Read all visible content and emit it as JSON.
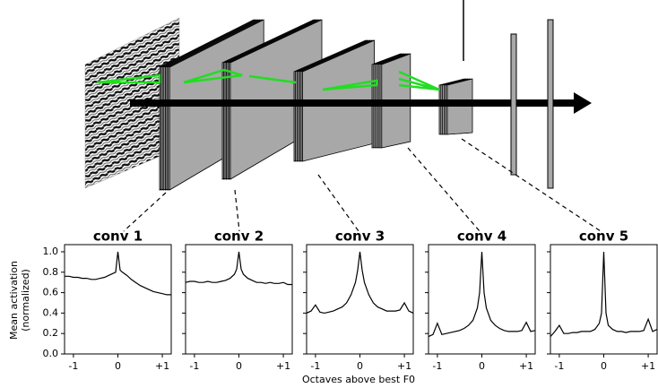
{
  "chart_data": [
    {
      "type": "line",
      "title": "conv 1",
      "x": [
        -1.2,
        -1.1,
        -1.0,
        -0.9,
        -0.8,
        -0.7,
        -0.6,
        -0.5,
        -0.4,
        -0.3,
        -0.2,
        -0.1,
        -0.05,
        0,
        0.05,
        0.1,
        0.2,
        0.3,
        0.4,
        0.5,
        0.6,
        0.7,
        0.8,
        0.9,
        1.0,
        1.1,
        1.2
      ],
      "values": [
        0.76,
        0.76,
        0.75,
        0.75,
        0.74,
        0.74,
        0.73,
        0.73,
        0.74,
        0.75,
        0.77,
        0.79,
        0.8,
        1.0,
        0.82,
        0.8,
        0.77,
        0.73,
        0.7,
        0.67,
        0.65,
        0.63,
        0.61,
        0.6,
        0.59,
        0.58,
        0.58
      ],
      "color": "#000000",
      "xlim": [
        -1.2,
        1.2
      ],
      "ylim": [
        0,
        1.07
      ],
      "xticks": [
        -1,
        0,
        {
          "value": 1,
          "label": "+1"
        }
      ],
      "yticks": [
        {
          "value": 0,
          "label": "0.0"
        },
        {
          "value": 0.2,
          "label": "0.2"
        },
        {
          "value": 0.4,
          "label": "0.4"
        },
        {
          "value": 0.6,
          "label": "0.6"
        },
        {
          "value": 0.8,
          "label": "0.8"
        },
        {
          "value": 1.0,
          "label": "1.0"
        }
      ],
      "ylabel": "Mean activation",
      "ylabel2": "(normalized)",
      "xlabel": "Octaves above best F0"
    },
    {
      "type": "line",
      "title": "conv 2",
      "x": [
        -1.2,
        -1.1,
        -1.0,
        -0.9,
        -0.8,
        -0.7,
        -0.6,
        -0.5,
        -0.4,
        -0.3,
        -0.2,
        -0.1,
        -0.05,
        0,
        0.05,
        0.1,
        0.2,
        0.3,
        0.4,
        0.5,
        0.6,
        0.7,
        0.8,
        0.9,
        1.0,
        1.1,
        1.2
      ],
      "values": [
        0.7,
        0.71,
        0.71,
        0.7,
        0.7,
        0.71,
        0.7,
        0.7,
        0.71,
        0.72,
        0.74,
        0.78,
        0.83,
        1.0,
        0.83,
        0.78,
        0.74,
        0.72,
        0.7,
        0.7,
        0.69,
        0.7,
        0.69,
        0.69,
        0.7,
        0.68,
        0.68
      ],
      "color": "#000000",
      "xlim": [
        -1.2,
        1.2
      ],
      "ylim": [
        0,
        1.07
      ],
      "xticks": [
        -1,
        0,
        {
          "value": 1,
          "label": "+1"
        }
      ]
    },
    {
      "type": "line",
      "title": "conv 3",
      "x": [
        -1.2,
        -1.1,
        -1.0,
        -0.9,
        -0.8,
        -0.7,
        -0.6,
        -0.5,
        -0.4,
        -0.3,
        -0.2,
        -0.1,
        -0.05,
        0,
        0.05,
        0.1,
        0.2,
        0.3,
        0.4,
        0.5,
        0.6,
        0.7,
        0.8,
        0.9,
        1.0,
        1.1,
        1.2
      ],
      "values": [
        0.4,
        0.42,
        0.48,
        0.41,
        0.4,
        0.41,
        0.42,
        0.44,
        0.46,
        0.5,
        0.58,
        0.7,
        0.82,
        1.0,
        0.82,
        0.7,
        0.58,
        0.5,
        0.46,
        0.44,
        0.42,
        0.42,
        0.42,
        0.43,
        0.5,
        0.42,
        0.4
      ],
      "color": "#000000",
      "xlim": [
        -1.2,
        1.2
      ],
      "ylim": [
        0,
        1.07
      ],
      "xticks": [
        -1,
        0,
        {
          "value": 1,
          "label": "+1"
        }
      ]
    },
    {
      "type": "line",
      "title": "conv 4",
      "x": [
        -1.2,
        -1.1,
        -1.0,
        -0.9,
        -0.8,
        -0.7,
        -0.6,
        -0.5,
        -0.4,
        -0.3,
        -0.2,
        -0.1,
        -0.05,
        0,
        0.05,
        0.1,
        0.2,
        0.3,
        0.4,
        0.5,
        0.6,
        0.7,
        0.8,
        0.9,
        1.0,
        1.1,
        1.2
      ],
      "values": [
        0.17,
        0.19,
        0.3,
        0.19,
        0.2,
        0.21,
        0.22,
        0.23,
        0.25,
        0.28,
        0.33,
        0.45,
        0.6,
        1.0,
        0.6,
        0.45,
        0.33,
        0.28,
        0.25,
        0.23,
        0.22,
        0.22,
        0.22,
        0.23,
        0.31,
        0.22,
        0.23
      ],
      "color": "#000000",
      "xlim": [
        -1.2,
        1.2
      ],
      "ylim": [
        0,
        1.07
      ],
      "xticks": [
        -1,
        0,
        {
          "value": 1,
          "label": "+1"
        }
      ]
    },
    {
      "type": "line",
      "title": "conv 5",
      "x": [
        -1.2,
        -1.1,
        -1.0,
        -0.9,
        -0.8,
        -0.7,
        -0.6,
        -0.5,
        -0.4,
        -0.3,
        -0.2,
        -0.1,
        -0.05,
        0,
        0.05,
        0.1,
        0.2,
        0.3,
        0.4,
        0.5,
        0.6,
        0.7,
        0.8,
        0.9,
        1.0,
        1.1,
        1.2
      ],
      "values": [
        0.17,
        0.22,
        0.28,
        0.2,
        0.2,
        0.21,
        0.21,
        0.22,
        0.22,
        0.22,
        0.24,
        0.3,
        0.4,
        1.0,
        0.4,
        0.28,
        0.24,
        0.22,
        0.22,
        0.21,
        0.22,
        0.22,
        0.22,
        0.23,
        0.34,
        0.22,
        0.24
      ],
      "color": "#000000",
      "xlim": [
        -1.2,
        1.2
      ],
      "ylim": [
        0,
        1.07
      ],
      "xticks": [
        -1,
        0,
        {
          "value": 1,
          "label": "+1"
        }
      ]
    }
  ]
}
